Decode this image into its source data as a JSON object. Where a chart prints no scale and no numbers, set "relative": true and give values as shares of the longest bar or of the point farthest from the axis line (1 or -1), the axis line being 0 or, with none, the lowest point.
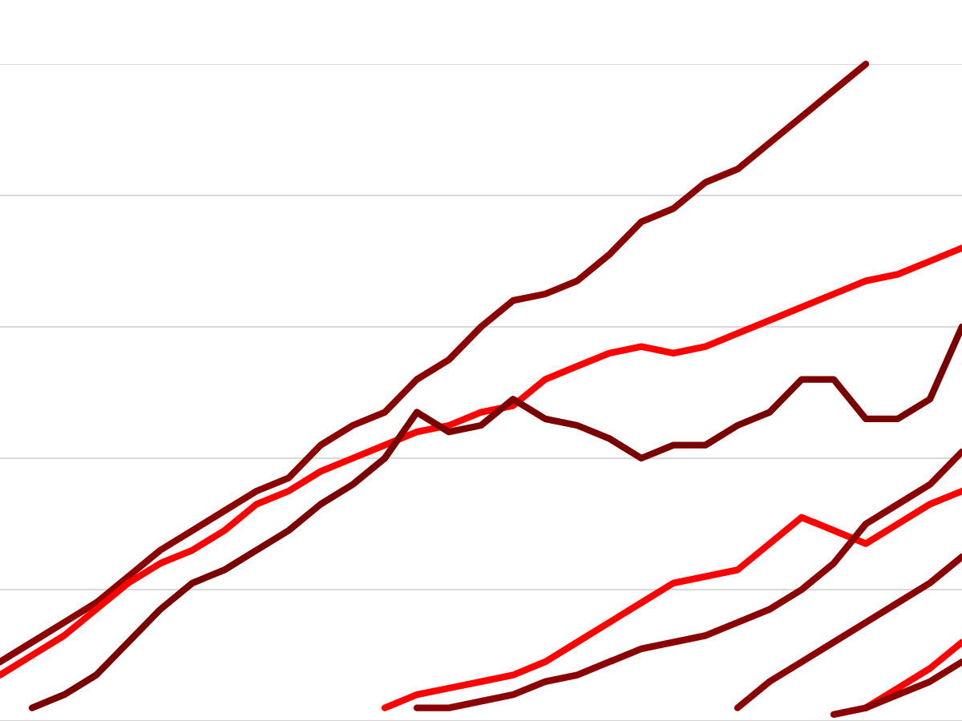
{
  "chart_data": {
    "type": "line",
    "relative": true,
    "grid": "y",
    "categories": [
      null,
      null,
      null,
      null,
      null,
      null,
      null,
      null,
      null,
      null,
      null,
      null,
      null,
      null,
      null,
      null,
      null,
      null,
      null,
      null,
      null,
      null,
      null,
      null,
      null,
      null,
      null,
      null,
      null,
      null,
      null
    ],
    "series": [
      {
        "color": "#8b0000",
        "values": [
          0.09,
          0.12,
          0.15,
          0.18,
          0.22,
          0.26,
          0.29,
          0.32,
          0.35,
          0.37,
          0.42,
          0.45,
          0.47,
          0.52,
          0.55,
          0.6,
          0.64,
          0.65,
          0.67,
          0.71,
          0.76,
          0.78,
          0.82,
          0.84,
          0.88,
          0.92,
          0.96,
          1.0,
          null,
          null,
          null
        ]
      },
      {
        "color": "#ff0000",
        "values": [
          0.07,
          0.1,
          0.13,
          0.17,
          0.21,
          0.24,
          0.26,
          0.29,
          0.33,
          0.35,
          0.38,
          0.4,
          0.42,
          0.44,
          0.45,
          0.47,
          0.48,
          0.52,
          0.54,
          0.56,
          0.57,
          0.56,
          0.57,
          0.59,
          0.61,
          0.63,
          0.65,
          0.67,
          0.68,
          0.7,
          0.72
        ]
      },
      {
        "color": "#7a0000",
        "values": [
          null,
          0.02,
          0.04,
          0.07,
          0.12,
          0.17,
          0.21,
          0.23,
          0.26,
          0.29,
          0.33,
          0.36,
          0.4,
          0.47,
          0.44,
          0.45,
          0.49,
          0.46,
          0.45,
          0.43,
          0.4,
          0.42,
          0.42,
          0.45,
          0.47,
          0.52,
          0.52,
          0.46,
          0.46,
          0.49,
          0.6
        ]
      },
      {
        "color": "#ff0000",
        "values": [
          null,
          null,
          null,
          null,
          null,
          null,
          null,
          null,
          null,
          null,
          null,
          null,
          0.02,
          0.04,
          0.05,
          0.06,
          0.07,
          0.09,
          0.12,
          0.15,
          0.18,
          0.21,
          0.22,
          0.23,
          0.27,
          0.31,
          0.29,
          0.27,
          0.3,
          0.33,
          0.35
        ]
      },
      {
        "color": "#8b0000",
        "values": [
          null,
          null,
          null,
          null,
          null,
          null,
          null,
          null,
          null,
          null,
          null,
          null,
          null,
          0.02,
          0.02,
          0.03,
          0.04,
          0.06,
          0.07,
          0.09,
          0.11,
          0.12,
          0.13,
          0.15,
          0.17,
          0.2,
          0.24,
          0.3,
          0.33,
          0.36,
          0.41
        ]
      },
      {
        "color": "#8b0000",
        "values": [
          null,
          null,
          null,
          null,
          null,
          null,
          null,
          null,
          null,
          null,
          null,
          null,
          null,
          null,
          null,
          null,
          null,
          null,
          null,
          null,
          null,
          null,
          null,
          0.02,
          0.06,
          0.09,
          0.12,
          0.15,
          0.18,
          0.21,
          0.25
        ]
      },
      {
        "color": "#ff0000",
        "values": [
          null,
          null,
          null,
          null,
          null,
          null,
          null,
          null,
          null,
          null,
          null,
          null,
          null,
          null,
          null,
          null,
          null,
          null,
          null,
          null,
          null,
          null,
          null,
          null,
          null,
          null,
          null,
          0.02,
          0.05,
          0.08,
          0.12
        ]
      },
      {
        "color": "#8b0000",
        "values": [
          null,
          null,
          null,
          null,
          null,
          null,
          null,
          null,
          null,
          null,
          null,
          null,
          null,
          null,
          null,
          null,
          null,
          null,
          null,
          null,
          null,
          null,
          null,
          null,
          null,
          null,
          0.01,
          0.02,
          0.04,
          0.06,
          0.09
        ]
      }
    ]
  }
}
